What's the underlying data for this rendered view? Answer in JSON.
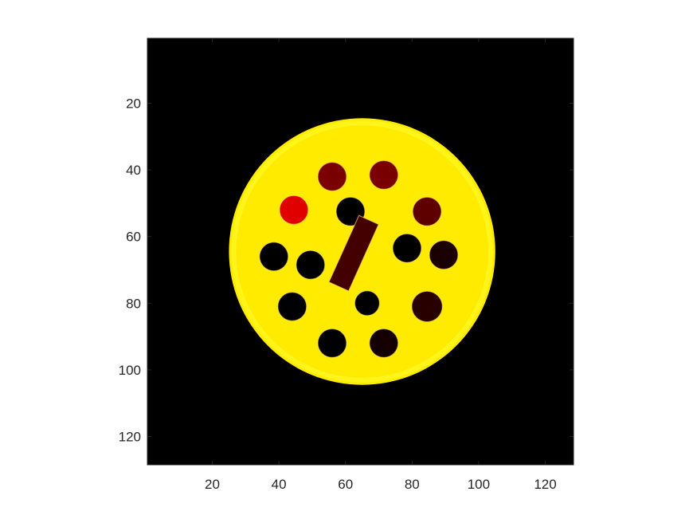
{
  "chart_data": {
    "type": "heatmap",
    "title": "",
    "xlabel": "",
    "ylabel": "",
    "colormap": "hot",
    "xlim": [
      0.5,
      128.5
    ],
    "ylim": [
      0.5,
      128.5
    ],
    "y_reversed": true,
    "grid": false,
    "x_ticks": [
      20,
      40,
      60,
      80,
      100,
      120
    ],
    "y_ticks": [
      20,
      40,
      60,
      80,
      100,
      120
    ],
    "x_tick_labels": [
      "20",
      "40",
      "60",
      "80",
      "100",
      "120"
    ],
    "y_tick_labels": [
      "20",
      "40",
      "60",
      "80",
      "100",
      "120"
    ],
    "colors": {
      "background": "#000000",
      "phantom_body": "#f58512",
      "vial_black": "#000000",
      "vial_dark_red": "#4a0000",
      "vial_red": "#6e0000",
      "vial_bright_red": "#d41a0a",
      "bar_fill": "#3a0000",
      "axis": "#262626"
    },
    "phantom": {
      "center": [
        65,
        64.5
      ],
      "radius": 40,
      "intensity": 0.72
    },
    "vials": [
      {
        "x": 56,
        "y": 42,
        "r": 4.3,
        "intensity": 0.18
      },
      {
        "x": 71.5,
        "y": 41.5,
        "r": 4.3,
        "intensity": 0.18
      },
      {
        "x": 44.5,
        "y": 52,
        "r": 4.3,
        "intensity": 0.33
      },
      {
        "x": 61.5,
        "y": 52.5,
        "r": 4.3,
        "intensity": 0.0
      },
      {
        "x": 84.5,
        "y": 52.5,
        "r": 4.3,
        "intensity": 0.14
      },
      {
        "x": 38.5,
        "y": 66,
        "r": 4.3,
        "intensity": 0.0
      },
      {
        "x": 49.5,
        "y": 68.5,
        "r": 4.3,
        "intensity": 0.0
      },
      {
        "x": 78.5,
        "y": 63.5,
        "r": 4.3,
        "intensity": 0.0
      },
      {
        "x": 89.5,
        "y": 65.5,
        "r": 4.3,
        "intensity": 0.04
      },
      {
        "x": 44,
        "y": 81,
        "r": 4.3,
        "intensity": 0.0
      },
      {
        "x": 66.5,
        "y": 80,
        "r": 3.7,
        "intensity": 0.0
      },
      {
        "x": 84.5,
        "y": 81,
        "r": 4.6,
        "intensity": 0.06
      },
      {
        "x": 56,
        "y": 92,
        "r": 4.3,
        "intensity": 0.0
      },
      {
        "x": 71.5,
        "y": 92,
        "r": 4.3,
        "intensity": 0.03
      }
    ],
    "bar": {
      "start": [
        67,
        55
      ],
      "end": [
        58,
        75
      ],
      "width": 6.5,
      "intensity": 0.1
    }
  }
}
